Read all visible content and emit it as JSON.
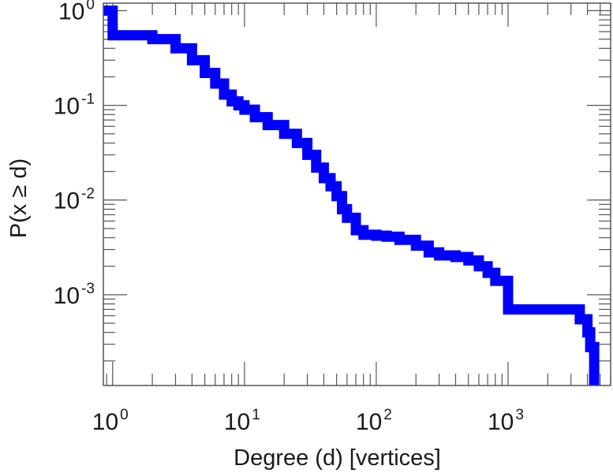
{
  "chart_data": {
    "type": "line",
    "title": "",
    "xlabel": "Degree (d) [vertices]",
    "ylabel": "P(x ≥ d)",
    "x_scale": "log",
    "y_scale": "log",
    "xlim": [
      0.85,
      6000
    ],
    "ylim": [
      0.00011,
      1.2
    ],
    "grid": false,
    "legend": "none",
    "line_color": "#0000ff",
    "x_ticks": [
      {
        "value": 1,
        "base": "10",
        "exp": "0"
      },
      {
        "value": 10,
        "base": "10",
        "exp": "1"
      },
      {
        "value": 100,
        "base": "10",
        "exp": "2"
      },
      {
        "value": 1000,
        "base": "10",
        "exp": "3"
      }
    ],
    "y_ticks": [
      {
        "value": 1,
        "base": "10",
        "exp": "0"
      },
      {
        "value": 0.1,
        "base": "10",
        "exp": "-1"
      },
      {
        "value": 0.01,
        "base": "10",
        "exp": "-2"
      },
      {
        "value": 0.001,
        "base": "10",
        "exp": "-3"
      }
    ],
    "series": [
      {
        "x": [
          0.85,
          1,
          2,
          3,
          4,
          5,
          6,
          7,
          8,
          9,
          10,
          12,
          15,
          20,
          25,
          30,
          35,
          40,
          45,
          50,
          55,
          60,
          70,
          80,
          100,
          120,
          150,
          200,
          250,
          300,
          400,
          500,
          600,
          700,
          800,
          1000,
          1500,
          2000,
          3000,
          3500,
          4000,
          4200,
          4500,
          4500
        ],
        "y": [
          1.0,
          0.55,
          0.5,
          0.4,
          0.3,
          0.22,
          0.17,
          0.13,
          0.11,
          0.1,
          0.09,
          0.075,
          0.062,
          0.05,
          0.04,
          0.03,
          0.022,
          0.017,
          0.014,
          0.011,
          0.008,
          0.0065,
          0.0048,
          0.0043,
          0.0042,
          0.0041,
          0.0038,
          0.0033,
          0.0028,
          0.0026,
          0.0025,
          0.0023,
          0.002,
          0.0017,
          0.0014,
          0.0007,
          0.0007,
          0.0007,
          0.0007,
          0.00055,
          0.0004,
          0.00028,
          0.00018,
          0.00011
        ]
      }
    ]
  }
}
